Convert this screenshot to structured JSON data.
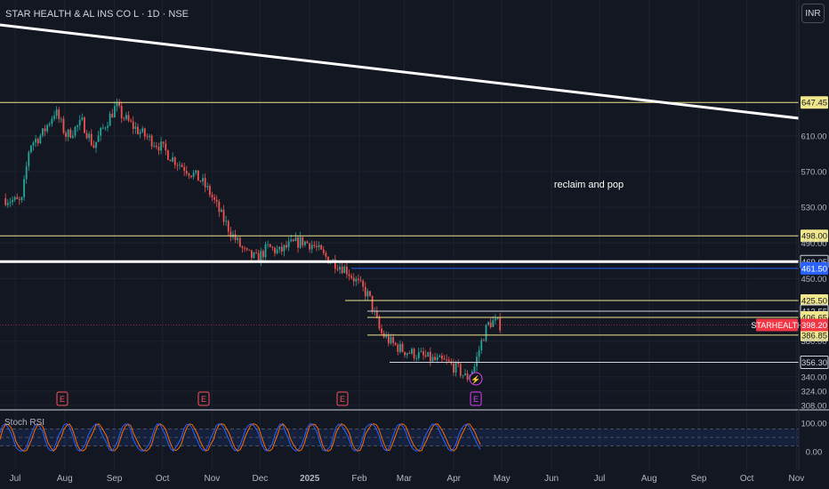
{
  "header": {
    "title": "STAR HEALTH & AL INS CO L · 1D · NSE",
    "currency": "INR"
  },
  "colors": {
    "background": "#131722",
    "up": "#26a69a",
    "down": "#ef5350",
    "level_line": "#f0e68c",
    "last_price": "#f23645",
    "blue_level": "#2962ff"
  },
  "chart_data": {
    "type": "candlestick",
    "title": "STAR HEALTH & AL INS CO L · 1D · NSE",
    "x_axis_labels": [
      "Jul",
      "Aug",
      "Sep",
      "Oct",
      "Nov",
      "Dec",
      "2025",
      "Feb",
      "Mar",
      "Apr",
      "May",
      "Jun",
      "Jul",
      "Aug",
      "Sep",
      "Oct",
      "Nov"
    ],
    "y_axis_ticks": [
      610.0,
      570.0,
      530.0,
      490.0,
      450.0,
      380.0,
      340.0,
      324.0,
      308.0
    ],
    "ylim": [
      300,
      665
    ],
    "close_path": [
      [
        "2024-06-24",
        540
      ],
      [
        "2024-07-05",
        535
      ],
      [
        "2024-07-10",
        600
      ],
      [
        "2024-07-18",
        612
      ],
      [
        "2024-07-26",
        638
      ],
      [
        "2024-08-02",
        610
      ],
      [
        "2024-08-12",
        625
      ],
      [
        "2024-08-19",
        598
      ],
      [
        "2024-08-26",
        622
      ],
      [
        "2024-09-02",
        643
      ],
      [
        "2024-09-06",
        632
      ],
      [
        "2024-09-13",
        620
      ],
      [
        "2024-09-20",
        610
      ],
      [
        "2024-09-30",
        598
      ],
      [
        "2024-10-07",
        585
      ],
      [
        "2024-10-18",
        570
      ],
      [
        "2024-10-25",
        560
      ],
      [
        "2024-10-31",
        545
      ],
      [
        "2024-11-07",
        520
      ],
      [
        "2024-11-14",
        498
      ],
      [
        "2024-11-22",
        478
      ],
      [
        "2024-11-29",
        472
      ],
      [
        "2024-12-06",
        485
      ],
      [
        "2024-12-13",
        480
      ],
      [
        "2024-12-20",
        488
      ],
      [
        "2024-12-27",
        492
      ],
      [
        "2025-01-03",
        488
      ],
      [
        "2025-01-10",
        475
      ],
      [
        "2025-01-17",
        468
      ],
      [
        "2025-01-24",
        460
      ],
      [
        "2025-01-31",
        445
      ],
      [
        "2025-02-07",
        430
      ],
      [
        "2025-02-14",
        390
      ],
      [
        "2025-02-21",
        378
      ],
      [
        "2025-02-28",
        370
      ],
      [
        "2025-03-07",
        366
      ],
      [
        "2025-03-14",
        362
      ],
      [
        "2025-03-21",
        358
      ],
      [
        "2025-03-28",
        356
      ],
      [
        "2025-04-04",
        348
      ],
      [
        "2025-04-09",
        338
      ],
      [
        "2025-04-14",
        352
      ],
      [
        "2025-04-18",
        378
      ],
      [
        "2025-04-22",
        398
      ],
      [
        "2025-04-25",
        402
      ],
      [
        "2025-04-30",
        398.2
      ]
    ],
    "horizontal_levels": [
      {
        "price": 647.45,
        "label": "647.45"
      },
      {
        "price": 498.0,
        "label": "498.00"
      },
      {
        "price": 469.05,
        "label": "469.05"
      },
      {
        "price": 461.5,
        "label": "461.50"
      },
      {
        "price": 425.5,
        "label": "425.50"
      },
      {
        "price": 413.55,
        "label": "413.55"
      },
      {
        "price": 406.65,
        "label": "406.65"
      },
      {
        "price": 386.85,
        "label": "386.85"
      },
      {
        "price": 356.3,
        "label": "356.30"
      }
    ],
    "last_price": {
      "symbol": "STARHEALTH",
      "value": "398.20"
    },
    "annotation": "reclaim and pop",
    "earnings_markers": [
      "E",
      "E",
      "E",
      "E"
    ],
    "indicator": {
      "name": "Stoch RSI",
      "ticks": [
        "100.00",
        "0.00"
      ],
      "ylim": [
        0,
        100
      ],
      "bands": [
        80,
        20
      ]
    }
  }
}
